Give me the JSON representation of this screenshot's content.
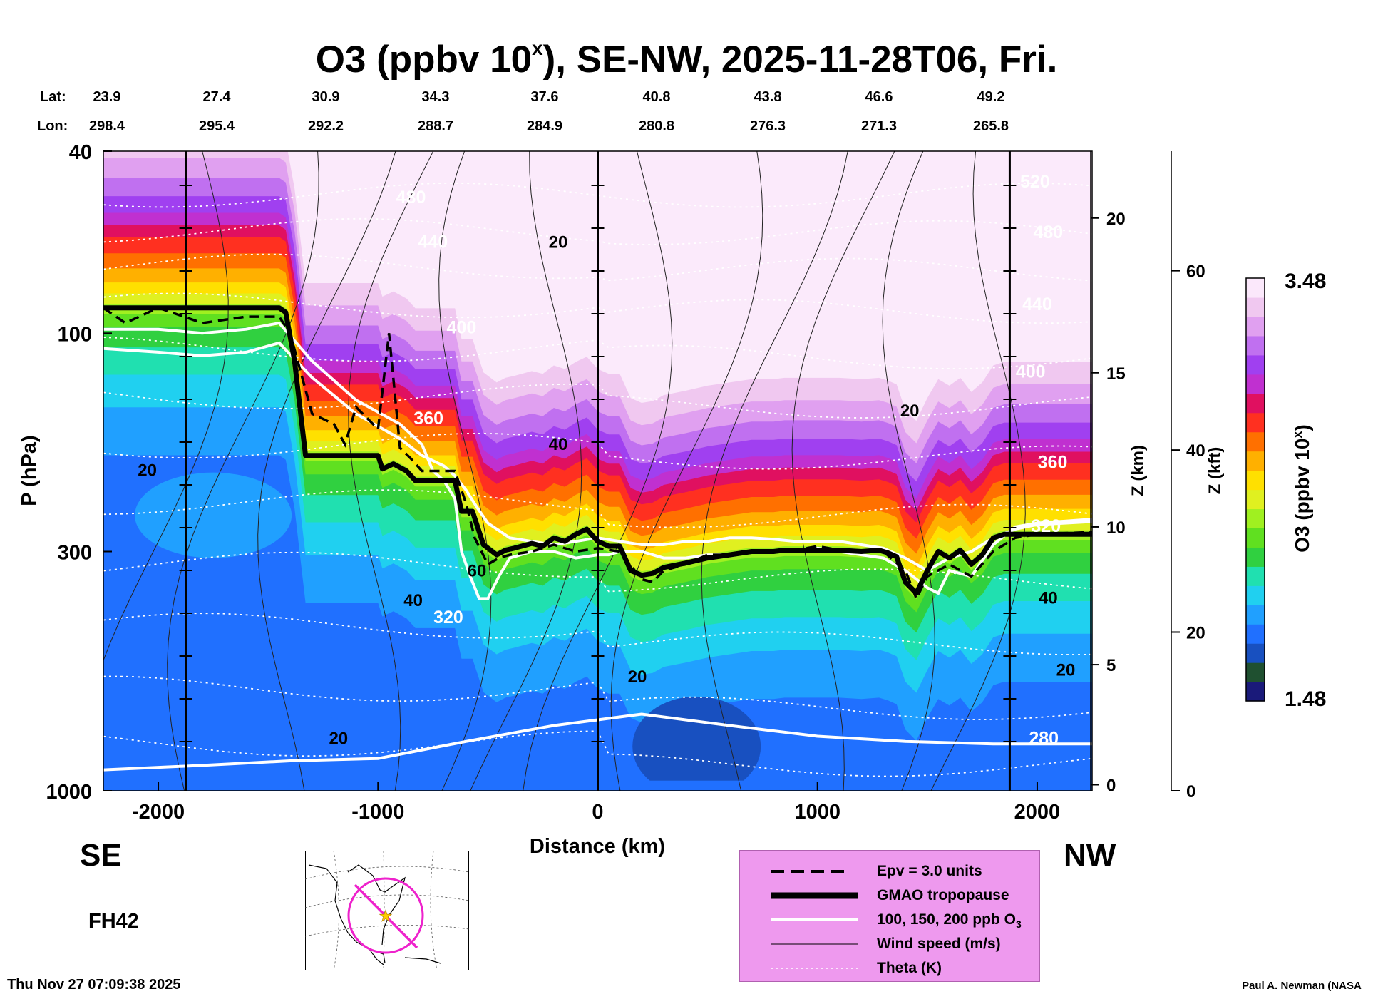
{
  "title": {
    "main": "O3 (ppbv 10",
    "sup": "x",
    "rest": "), SE-NW, 2025-11-28T06, Fri."
  },
  "header": {
    "lat_label": "Lat:",
    "lon_label": "Lon:",
    "lat": [
      "23.9",
      "27.4",
      "30.9",
      "34.3",
      "37.6",
      "40.8",
      "43.8",
      "46.6",
      "49.2"
    ],
    "lon": [
      "298.4",
      "295.4",
      "292.2",
      "288.7",
      "284.9",
      "280.8",
      "276.3",
      "271.3",
      "265.8"
    ]
  },
  "ends": {
    "left": "SE",
    "right": "NW"
  },
  "forecast_hour": "FH42",
  "timestamp": "Thu Nov 27 07:09:38 2025",
  "credit": "Paul A. Newman (NASA",
  "legend": {
    "items": [
      {
        "label": "Epv = 3.0 units",
        "style": "dashed-black"
      },
      {
        "label": "GMAO tropopause",
        "style": "thick-black"
      },
      {
        "label": "100, 150, 200 ppb O",
        "sub": "3",
        "style": "white"
      },
      {
        "label": "Wind speed (m/s)",
        "style": "thin-black"
      },
      {
        "label": "Theta (K)",
        "style": "dotted-white"
      }
    ]
  },
  "colorbar": {
    "max_label": "3.48",
    "min_label": "1.48",
    "title": "O3 (ppbv 10",
    "title_sup": "x",
    "title_end": ")",
    "colors": [
      "#1a1a7a",
      "#1f5030",
      "#1850c0",
      "#2070ff",
      "#20a0ff",
      "#20d0f0",
      "#20e0b0",
      "#30d040",
      "#60e020",
      "#a0f020",
      "#e0f020",
      "#ffe000",
      "#ffb000",
      "#ff7000",
      "#ff3020",
      "#e01060",
      "#c030d0",
      "#a040f0",
      "#c070f0",
      "#e0a0f0",
      "#f0c8f0",
      "#fbe8fb"
    ]
  },
  "chart_data": {
    "type": "heatmap",
    "title": "O3 (ppbv 10x), SE-NW, 2025-11-28T06, Fri.",
    "xlabel": "Distance (km)",
    "ylabel": "P (hPa)",
    "ylabel_right_1": "Z (km)",
    "ylabel_right_2": "Z (kft)",
    "xlim": [
      -2250,
      2250
    ],
    "ylim": [
      1000,
      40
    ],
    "y_scale": "log",
    "x_ticks": [
      -2000,
      -1000,
      0,
      1000,
      2000
    ],
    "x_tick_labels": [
      "-2000",
      "-1000",
      "0",
      "1000",
      "2000"
    ],
    "y_ticks": [
      40,
      100,
      300,
      1000
    ],
    "y_tick_labels": [
      "40",
      "100",
      "300",
      "1000"
    ],
    "z_km_ticks": [
      {
        "p": 970,
        "label": "0"
      },
      {
        "p": 530,
        "label": "5"
      },
      {
        "p": 265,
        "label": "10"
      },
      {
        "p": 122,
        "label": "15"
      },
      {
        "p": 56,
        "label": "20"
      }
    ],
    "z_kft_ticks": [
      {
        "p": 1000,
        "label": "0"
      },
      {
        "p": 450,
        "label": "20"
      },
      {
        "p": 180,
        "label": "40"
      },
      {
        "p": 73,
        "label": "60"
      }
    ],
    "colorbar_range": [
      1.48,
      3.48
    ],
    "tropopause": {
      "x": [
        -2250,
        -2200,
        -2000,
        -1800,
        -1600,
        -1450,
        -1420,
        -1380,
        -1330,
        -1200,
        -1000,
        -980,
        -930,
        -870,
        -830,
        -800,
        -650,
        -620,
        -570,
        -520,
        -460,
        -420,
        -380,
        -300,
        -250,
        -200,
        -150,
        -100,
        -50,
        0,
        50,
        100,
        150,
        200,
        250,
        300,
        400,
        500,
        600,
        700,
        800,
        850,
        900,
        1000,
        1100,
        1200,
        1280,
        1320,
        1360,
        1400,
        1450,
        1500,
        1550,
        1600,
        1650,
        1700,
        1750,
        1800,
        1850,
        1900,
        2000,
        2250
      ],
      "p": [
        88,
        88,
        88,
        88,
        88,
        88,
        90,
        115,
        185,
        185,
        185,
        198,
        193,
        200,
        210,
        210,
        210,
        245,
        245,
        290,
        305,
        298,
        295,
        288,
        292,
        280,
        285,
        275,
        268,
        285,
        292,
        292,
        330,
        338,
        335,
        325,
        318,
        310,
        305,
        300,
        300,
        298,
        298,
        298,
        298,
        300,
        298,
        302,
        308,
        350,
        370,
        330,
        300,
        310,
        298,
        320,
        305,
        280,
        275,
        275,
        275,
        275
      ]
    },
    "epv_3": {
      "x": [
        -2250,
        -2150,
        -2000,
        -1800,
        -1600,
        -1450,
        -1400,
        -1300,
        -1200,
        -1150,
        -1100,
        -1000,
        -950,
        -900,
        -850,
        -800,
        -700,
        -650,
        -600,
        -560,
        -500,
        -450,
        -400,
        -300,
        -200,
        -100,
        0,
        100,
        200,
        250,
        300,
        400,
        500,
        600,
        700,
        800,
        900,
        1000,
        1100,
        1200,
        1300,
        1400,
        1450,
        1500,
        1600,
        1700,
        1800,
        1900,
        2000,
        2250
      ],
      "p": [
        88,
        95,
        88,
        95,
        92,
        92,
        100,
        150,
        158,
        175,
        145,
        162,
        100,
        178,
        188,
        200,
        200,
        200,
        235,
        280,
        320,
        310,
        305,
        300,
        290,
        300,
        295,
        300,
        345,
        350,
        330,
        320,
        305,
        305,
        300,
        300,
        298,
        292,
        298,
        300,
        300,
        330,
        380,
        340,
        320,
        340,
        300,
        280,
        275,
        272
      ]
    },
    "ozone_contours": [
      {
        "label": "100 ppb",
        "x": [
          -2250,
          -2000,
          -1800,
          -1600,
          -1450,
          -1300,
          -1100,
          -900,
          -800,
          -750,
          -700,
          -650,
          -620,
          -580,
          -540,
          -500,
          -450,
          -400,
          -300,
          -200,
          -100,
          0,
          50,
          100,
          150,
          200,
          300,
          400,
          500,
          600,
          700,
          800,
          900,
          1000,
          1100,
          1200,
          1300,
          1400,
          1500,
          1550,
          1600,
          1700,
          1800,
          1900,
          2000,
          2250
        ],
        "p": [
          98,
          98,
          100,
          98,
          95,
          115,
          140,
          158,
          175,
          200,
          210,
          230,
          300,
          340,
          380,
          380,
          340,
          310,
          300,
          300,
          310,
          305,
          305,
          300,
          300,
          300,
          310,
          310,
          305,
          305,
          300,
          300,
          300,
          295,
          300,
          305,
          310,
          330,
          360,
          370,
          330,
          340,
          290,
          265,
          260,
          255
        ]
      },
      {
        "label": "150 ppb",
        "x": [
          -2250,
          -2000,
          -1800,
          -1600,
          -1450,
          -1300,
          -1100,
          -900,
          -800,
          -700,
          -650,
          -600,
          -550,
          -500,
          -400,
          -300,
          -200,
          -100,
          0,
          100,
          200,
          300,
          400,
          500,
          600,
          700,
          800,
          900,
          1000,
          1100,
          1200,
          1300,
          1400,
          1500,
          1600,
          1700,
          1800,
          1900,
          2000,
          2250
        ],
        "p": [
          108,
          110,
          112,
          110,
          105,
          125,
          150,
          170,
          185,
          195,
          205,
          220,
          240,
          260,
          280,
          285,
          290,
          285,
          280,
          285,
          290,
          290,
          285,
          285,
          280,
          280,
          282,
          285,
          285,
          285,
          290,
          295,
          310,
          330,
          310,
          300,
          280,
          268,
          262,
          258
        ]
      },
      {
        "label": "280 K",
        "x": [
          -2250,
          -1800,
          -1400,
          -1000,
          -600,
          -200,
          200,
          600,
          1000,
          1400,
          1800,
          2250
        ],
        "p": [
          900,
          880,
          860,
          850,
          780,
          720,
          680,
          720,
          760,
          780,
          790,
          790
        ]
      }
    ],
    "theta_labels": [
      {
        "text": "480",
        "x": -850,
        "p": 52
      },
      {
        "text": "440",
        "x": -750,
        "p": 65
      },
      {
        "text": "400",
        "x": -620,
        "p": 100
      },
      {
        "text": "360",
        "x": -770,
        "p": 158
      },
      {
        "text": "320",
        "x": -680,
        "p": 430
      },
      {
        "text": "520",
        "x": 1990,
        "p": 48
      },
      {
        "text": "480",
        "x": 2050,
        "p": 62
      },
      {
        "text": "440",
        "x": 2000,
        "p": 89
      },
      {
        "text": "400",
        "x": 1970,
        "p": 125
      },
      {
        "text": "360",
        "x": 2070,
        "p": 197
      },
      {
        "text": "320",
        "x": 2040,
        "p": 272
      },
      {
        "text": "280",
        "x": 2030,
        "p": 790
      }
    ],
    "wind_labels": [
      {
        "text": "20",
        "x": -2050,
        "p": 205
      },
      {
        "text": "20",
        "x": -1180,
        "p": 790
      },
      {
        "text": "40",
        "x": -840,
        "p": 395
      },
      {
        "text": "60",
        "x": -550,
        "p": 340
      },
      {
        "text": "40",
        "x": -180,
        "p": 180
      },
      {
        "text": "20",
        "x": -180,
        "p": 65
      },
      {
        "text": "20",
        "x": 180,
        "p": 580
      },
      {
        "text": "20",
        "x": 1420,
        "p": 152
      },
      {
        "text": "40",
        "x": 2050,
        "p": 390
      },
      {
        "text": "20",
        "x": 2130,
        "p": 560
      }
    ]
  }
}
